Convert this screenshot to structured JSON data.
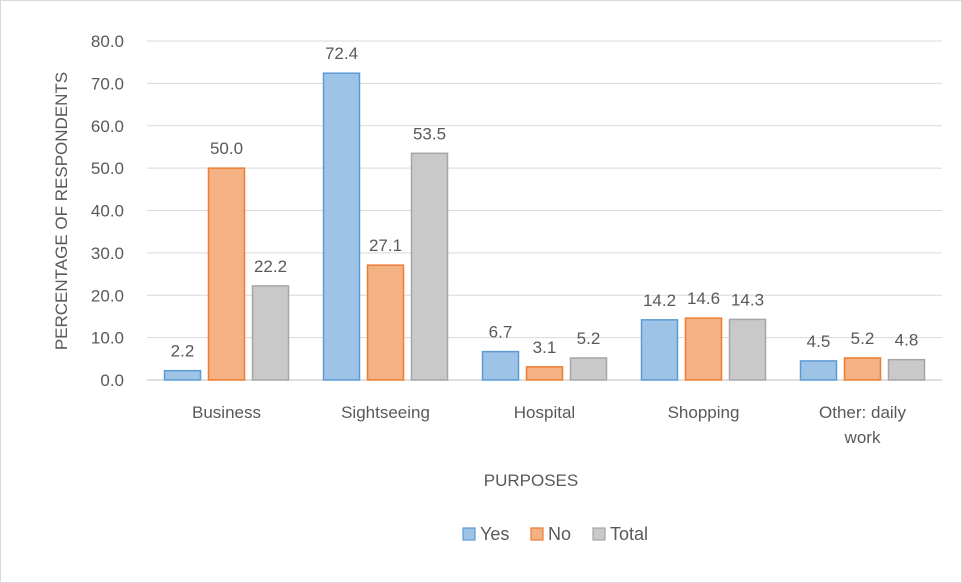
{
  "chart_data": {
    "type": "bar",
    "xlabel": "PURPOSES",
    "ylabel": "PERCENTAGE OF RESPONDENTS",
    "categories": [
      [
        "Business"
      ],
      [
        "Sightseeing"
      ],
      [
        "Hospital"
      ],
      [
        "Shopping"
      ],
      [
        "Other: daily",
        "work"
      ]
    ],
    "series": [
      {
        "name": "Yes",
        "values": [
          2.2,
          72.4,
          6.7,
          14.2,
          4.5
        ],
        "labels": [
          "2.2",
          "72.4",
          "6.7",
          "14.2",
          "4.5"
        ],
        "color": "#9dc3e6",
        "stroke": "#5b9bd5"
      },
      {
        "name": "No",
        "values": [
          50.0,
          27.1,
          3.1,
          14.6,
          5.2
        ],
        "labels": [
          "50.0",
          "27.1",
          "3.1",
          "14.6",
          "5.2"
        ],
        "color": "#f4b183",
        "stroke": "#ed7d31"
      },
      {
        "name": "Total",
        "values": [
          22.2,
          53.5,
          5.2,
          14.3,
          4.8
        ],
        "labels": [
          "22.2",
          "53.5",
          "5.2",
          "14.3",
          "4.8"
        ],
        "color": "#c9c9c9",
        "stroke": "#a5a5a5"
      }
    ],
    "ylim": [
      0,
      80
    ],
    "yticks": [
      "0.0",
      "10.0",
      "20.0",
      "30.0",
      "40.0",
      "50.0",
      "60.0",
      "70.0",
      "80.0"
    ],
    "grid": true,
    "legend_position": "bottom"
  }
}
